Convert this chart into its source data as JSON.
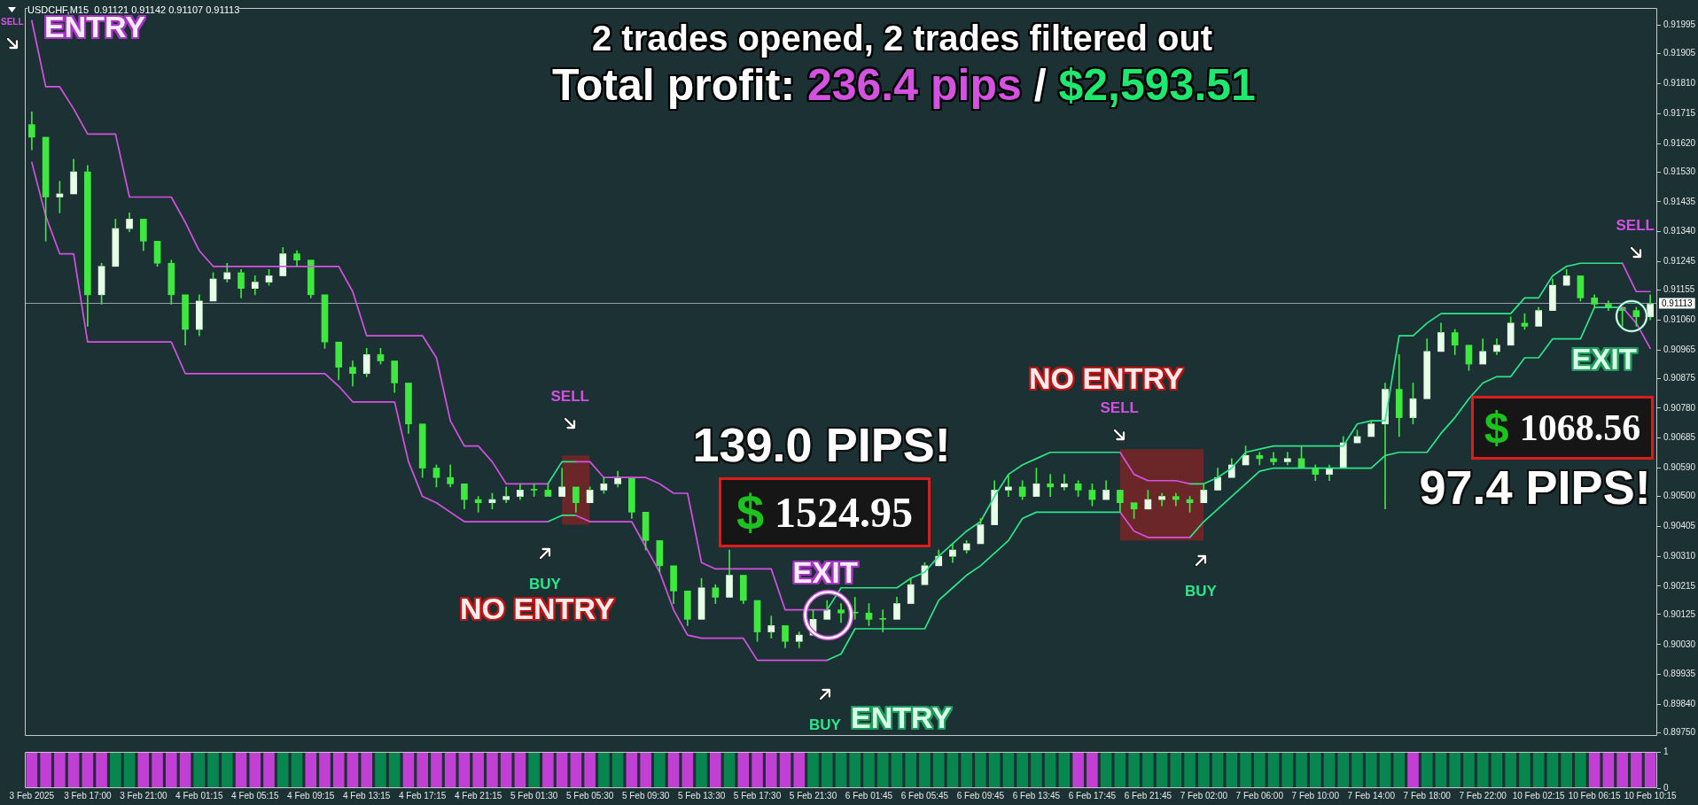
{
  "chart_data": [
    {
      "type": "candlestick",
      "title": "2 trades opened, 2 trades filtered out",
      "subtitle": "Total profit: 236.4 pips / $2,593.51",
      "categories": [
        null,
        null,
        null,
        null,
        null,
        null,
        null,
        null,
        null,
        null,
        null,
        null,
        null,
        null,
        null,
        null,
        null,
        null,
        null,
        null,
        null,
        null,
        null,
        null,
        null,
        null,
        null,
        null,
        null,
        null,
        null,
        null,
        null,
        null,
        null,
        null,
        null,
        null,
        null,
        null,
        null,
        null,
        null,
        null,
        null,
        null,
        null,
        null,
        null,
        null,
        null,
        null,
        null,
        null,
        null,
        null,
        null,
        null,
        null,
        null,
        null,
        null,
        null,
        null,
        null,
        null,
        null,
        null,
        null,
        null,
        null,
        null,
        null,
        null,
        null,
        null,
        null,
        null,
        null,
        null,
        null,
        null,
        null,
        null,
        null,
        null,
        null,
        null,
        null,
        null,
        null,
        null,
        null,
        null,
        null,
        null,
        null,
        null,
        null,
        null,
        null,
        null,
        null,
        null,
        null,
        null,
        null,
        null,
        null,
        null,
        null,
        null,
        null,
        null,
        null,
        null,
        null
      ],
      "color": "#3ee83e",
      "colors": [
        "#3ee83e",
        "#3ee83e",
        "#e6ffe6",
        "#e6ffe6",
        "#3ee83e",
        "#e6ffe6",
        "#e6ffe6",
        "#e6ffe6",
        "#3ee83e",
        "#3ee83e",
        "#3ee83e",
        "#3ee83e",
        "#e6ffe6",
        "#e6ffe6",
        "#e6ffe6",
        "#3ee83e",
        "#e6ffe6",
        "#e6ffe6",
        "#e6ffe6",
        "#3ee83e",
        "#3ee83e",
        "#3ee83e",
        "#3ee83e",
        "#3ee83e",
        "#e6ffe6",
        "#3ee83e",
        "#3ee83e",
        "#3ee83e",
        "#3ee83e",
        "#3ee83e",
        "#3ee83e",
        "#3ee83e",
        "#3ee83e",
        "#e6ffe6",
        "#e6ffe6",
        "#e6ffe6",
        "#3ee83e",
        "#3ee83e",
        "#e6ffe6",
        "#3ee83e",
        "#e6ffe6",
        "#e6ffe6",
        "#e6ffe6",
        "#3ee83e",
        "#3ee83e",
        "#3ee83e",
        "#3ee83e",
        "#3ee83e",
        "#e6ffe6",
        "#3ee83e",
        "#e6ffe6",
        "#3ee83e",
        "#3ee83e",
        "#e6ffe6",
        "#3ee83e",
        "#e6ffe6",
        "#e6ffe6",
        "#e6ffe6",
        "#3ee83e",
        "#3ee83e",
        "#3ee83e",
        "#3ee83e",
        "#e6ffe6",
        "#e6ffe6",
        "#e6ffe6",
        "#e6ffe6",
        "#e6ffe6",
        "#e6ffe6",
        "#e6ffe6",
        "#e6ffe6",
        "#e6ffe6",
        "#3ee83e",
        "#e6ffe6",
        "#3ee83e",
        "#e6ffe6",
        "#3ee83e",
        "#3ee83e",
        "#e6ffe6",
        "#3ee83e",
        "#3ee83e",
        "#e6ffe6",
        "#e6ffe6",
        "#3ee83e",
        "#3ee83e",
        "#e6ffe6",
        "#e6ffe6",
        "#e6ffe6",
        "#e6ffe6",
        "#3ee83e",
        "#3ee83e",
        "#e6ffe6",
        "#3ee83e",
        "#3ee83e",
        "#e6ffe6",
        "#e6ffe6",
        "#e6ffe6",
        "#e6ffe6",
        "#e6ffe6",
        "#3ee83e",
        "#e6ffe6",
        "#e6ffe6",
        "#e6ffe6",
        "#3ee83e",
        "#3ee83e",
        "#e6ffe6",
        "#e6ffe6",
        "#e6ffe6",
        "#3ee83e",
        "#e6ffe6",
        "#e6ffe6",
        "#e6ffe6",
        "#3ee83e",
        "#3ee83e",
        "#3ee83e",
        "#3ee83e",
        "#3ee83e",
        "#e6ffe6"
      ],
      "ohlc": [
        [
          0.9168,
          0.9172,
          0.916,
          0.9164
        ],
        [
          0.9164,
          0.9164,
          0.9131,
          0.9145
        ],
        [
          0.9145,
          0.915,
          0.914,
          0.9146
        ],
        [
          0.9146,
          0.9157,
          0.9146,
          0.9153
        ],
        [
          0.9153,
          0.9155,
          0.9104,
          0.9114
        ],
        [
          0.9114,
          0.9124,
          0.9111,
          0.9123
        ],
        [
          0.9123,
          0.9138,
          0.9123,
          0.9135
        ],
        [
          0.9135,
          0.914,
          0.9134,
          0.9138
        ],
        [
          0.9138,
          0.9138,
          0.9128,
          0.9131
        ],
        [
          0.9131,
          0.9131,
          0.9123,
          0.9124
        ],
        [
          0.9124,
          0.9125,
          0.9111,
          0.9114
        ],
        [
          0.9114,
          0.9114,
          0.9098,
          0.9103
        ],
        [
          0.9103,
          0.9114,
          0.9101,
          0.9112
        ],
        [
          0.9112,
          0.9121,
          0.9112,
          0.9119
        ],
        [
          0.9119,
          0.9124,
          0.9118,
          0.9121
        ],
        [
          0.9121,
          0.9122,
          0.9113,
          0.9116
        ],
        [
          0.9116,
          0.912,
          0.9114,
          0.9118
        ],
        [
          0.9118,
          0.9122,
          0.9117,
          0.912
        ],
        [
          0.912,
          0.9129,
          0.912,
          0.9127
        ],
        [
          0.9127,
          0.9128,
          0.9123,
          0.9125
        ],
        [
          0.9125,
          0.9125,
          0.9113,
          0.9114
        ],
        [
          0.9114,
          0.9114,
          0.9097,
          0.9099
        ],
        [
          0.9099,
          0.9099,
          0.9087,
          0.9091
        ],
        [
          0.9091,
          0.9093,
          0.9085,
          0.9089
        ],
        [
          0.9089,
          0.9097,
          0.9088,
          0.9095
        ],
        [
          0.9095,
          0.9097,
          0.9092,
          0.9093
        ],
        [
          0.9093,
          0.9093,
          0.9083,
          0.9086
        ],
        [
          0.9086,
          0.9086,
          0.907,
          0.9073
        ],
        [
          0.9073,
          0.9073,
          0.9056,
          0.9059
        ],
        [
          0.9059,
          0.906,
          0.9053,
          0.9056
        ],
        [
          0.9056,
          0.906,
          0.9053,
          0.9054
        ],
        [
          0.9054,
          0.9054,
          0.9046,
          0.9049
        ],
        [
          0.9049,
          0.905,
          0.9045,
          0.9048
        ],
        [
          0.9048,
          0.9051,
          0.9046,
          0.9049
        ],
        [
          0.9049,
          0.9053,
          0.9048,
          0.905
        ],
        [
          0.905,
          0.9054,
          0.9049,
          0.9052
        ],
        [
          0.9052,
          0.9054,
          0.905,
          0.9052
        ],
        [
          0.9052,
          0.9054,
          0.905,
          0.905
        ],
        [
          0.905,
          0.9059,
          0.905,
          0.9053
        ],
        [
          0.9053,
          0.9053,
          0.9045,
          0.9048
        ],
        [
          0.9048,
          0.9053,
          0.9048,
          0.9052
        ],
        [
          0.9052,
          0.9056,
          0.9051,
          0.9054
        ],
        [
          0.9054,
          0.9058,
          0.9053,
          0.9056
        ],
        [
          0.9056,
          0.9056,
          0.9043,
          0.9045
        ],
        [
          0.9045,
          0.9045,
          0.9033,
          0.9036
        ],
        [
          0.9036,
          0.9036,
          0.9026,
          0.9028
        ],
        [
          0.9028,
          0.9028,
          0.9016,
          0.902
        ],
        [
          0.902,
          0.902,
          0.9009,
          0.9011
        ],
        [
          0.9011,
          0.9024,
          0.9011,
          0.9021
        ],
        [
          0.9021,
          0.9022,
          0.9016,
          0.9018
        ],
        [
          0.9018,
          0.9033,
          0.9018,
          0.9025
        ],
        [
          0.9025,
          0.9025,
          0.9016,
          0.9017
        ],
        [
          0.9017,
          0.9017,
          0.9004,
          0.9007
        ],
        [
          0.9007,
          0.9012,
          0.9005,
          0.9009
        ],
        [
          0.9009,
          0.9009,
          0.9002,
          0.9004
        ],
        [
          0.9004,
          0.9007,
          0.9002,
          0.9006
        ],
        [
          0.9006,
          0.9014,
          0.9006,
          0.9011
        ],
        [
          0.9011,
          0.9017,
          0.9011,
          0.9014
        ],
        [
          0.9014,
          0.9016,
          0.901,
          0.9013
        ],
        [
          0.9013,
          0.9018,
          0.9011,
          0.9013
        ],
        [
          0.9013,
          0.9016,
          0.9009,
          0.9011
        ],
        [
          0.9011,
          0.9014,
          0.9007,
          0.9011
        ],
        [
          0.9011,
          0.9018,
          0.9011,
          0.9016
        ],
        [
          0.9016,
          0.9024,
          0.9016,
          0.9022
        ],
        [
          0.9022,
          0.9029,
          0.9022,
          0.9028
        ],
        [
          0.9028,
          0.9033,
          0.9028,
          0.9031
        ],
        [
          0.9031,
          0.9035,
          0.9029,
          0.9033
        ],
        [
          0.9033,
          0.9036,
          0.9032,
          0.9035
        ],
        [
          0.9035,
          0.9043,
          0.9035,
          0.9041
        ],
        [
          0.9041,
          0.9055,
          0.9041,
          0.9052
        ],
        [
          0.9052,
          0.9057,
          0.905,
          0.9053
        ],
        [
          0.9053,
          0.9055,
          0.9049,
          0.905
        ],
        [
          0.905,
          0.9059,
          0.905,
          0.9054
        ],
        [
          0.9054,
          0.9057,
          0.905,
          0.9053
        ],
        [
          0.9053,
          0.9057,
          0.9052,
          0.9054
        ],
        [
          0.9054,
          0.9055,
          0.905,
          0.9052
        ],
        [
          0.9052,
          0.9054,
          0.9047,
          0.9049
        ],
        [
          0.9049,
          0.9055,
          0.9049,
          0.9052
        ],
        [
          0.9052,
          0.9052,
          0.9045,
          0.9048
        ],
        [
          0.9048,
          0.9048,
          0.9043,
          0.9046
        ],
        [
          0.9046,
          0.9052,
          0.9046,
          0.9049
        ],
        [
          0.9049,
          0.9051,
          0.9047,
          0.905
        ],
        [
          0.905,
          0.9051,
          0.9047,
          0.9049
        ],
        [
          0.9049,
          0.905,
          0.9045,
          0.9048
        ],
        [
          0.9048,
          0.9054,
          0.9048,
          0.9052
        ],
        [
          0.9052,
          0.9059,
          0.9052,
          0.9056
        ],
        [
          0.9056,
          0.9062,
          0.9056,
          0.906
        ],
        [
          0.906,
          0.9066,
          0.906,
          0.9063
        ],
        [
          0.9063,
          0.9064,
          0.906,
          0.9062
        ],
        [
          0.9062,
          0.9064,
          0.906,
          0.9061
        ],
        [
          0.9061,
          0.9064,
          0.906,
          0.9062
        ],
        [
          0.9062,
          0.9066,
          0.9059,
          0.9059
        ],
        [
          0.9059,
          0.906,
          0.9055,
          0.9057
        ],
        [
          0.9057,
          0.906,
          0.9055,
          0.9059
        ],
        [
          0.9059,
          0.9069,
          0.9059,
          0.9067
        ],
        [
          0.9067,
          0.9071,
          0.9067,
          0.9069
        ],
        [
          0.9069,
          0.9074,
          0.9069,
          0.9073
        ],
        [
          0.9073,
          0.9086,
          0.9046,
          0.9084
        ],
        [
          0.9084,
          0.9095,
          0.9069,
          0.9075
        ],
        [
          0.9075,
          0.9086,
          0.9073,
          0.9081
        ],
        [
          0.9081,
          0.91,
          0.9081,
          0.9096
        ],
        [
          0.9096,
          0.9105,
          0.9096,
          0.9102
        ],
        [
          0.9102,
          0.9103,
          0.9095,
          0.9098
        ],
        [
          0.9098,
          0.9098,
          0.909,
          0.9092
        ],
        [
          0.9092,
          0.91,
          0.9092,
          0.9096
        ],
        [
          0.9096,
          0.91,
          0.9095,
          0.9098
        ],
        [
          0.9098,
          0.9107,
          0.9098,
          0.9105
        ],
        [
          0.9105,
          0.9108,
          0.9103,
          0.9104
        ],
        [
          0.9104,
          0.911,
          0.9104,
          0.9109
        ],
        [
          0.9109,
          0.9119,
          0.9109,
          0.9117
        ],
        [
          0.9117,
          0.9122,
          0.9117,
          0.912
        ],
        [
          0.912,
          0.912,
          0.9112,
          0.9113
        ],
        [
          0.9113,
          0.9114,
          0.911,
          0.9111
        ],
        [
          0.9111,
          0.9112,
          0.9109,
          0.911
        ],
        [
          0.911,
          0.911,
          0.9104,
          0.9109
        ],
        [
          0.9109,
          0.911,
          0.9104,
          0.9107
        ],
        [
          0.9107,
          0.9114,
          0.9106,
          0.9111
        ]
      ],
      "series": [
        {
          "type": "line",
          "color": "#6b2727",
          "values": [
            null,
            null,
            null,
            null,
            null,
            null,
            null,
            null,
            null,
            null,
            null,
            null,
            null,
            null,
            null,
            null,
            null,
            null,
            null,
            null,
            null,
            null,
            null,
            null,
            null,
            null,
            null,
            null,
            null,
            null,
            null,
            null,
            null,
            null,
            null,
            null,
            null,
            null,
            null,
            null,
            null,
            null,
            null,
            null,
            null,
            null,
            null,
            null,
            null,
            null,
            null,
            null,
            null,
            null,
            null,
            null,
            null,
            null,
            null,
            null,
            null,
            null,
            null,
            null,
            null,
            null,
            null,
            null,
            null,
            null,
            null,
            null,
            null,
            null,
            null,
            null,
            null,
            null,
            null,
            null,
            null,
            null,
            null,
            null,
            null,
            null,
            null,
            null,
            null,
            null,
            null,
            null,
            null,
            null,
            null,
            null,
            null,
            null,
            null,
            null,
            null,
            null,
            null,
            null,
            null,
            null,
            null,
            null,
            null,
            null,
            null,
            null,
            null,
            null,
            null,
            null,
            null
          ],
          "lower": [
            null,
            null,
            null,
            null,
            null,
            null,
            null,
            null,
            null,
            null,
            null,
            null,
            null,
            null,
            null,
            null,
            null,
            null,
            null,
            null,
            null,
            null,
            null,
            null,
            null,
            null,
            null,
            null,
            null,
            null,
            null,
            null,
            null,
            null,
            null,
            null,
            null,
            null,
            0.9041,
            0.9041,
            0.9041,
            null,
            null,
            null,
            null,
            null,
            null,
            null,
            null,
            null,
            null,
            null,
            null,
            null,
            null,
            null,
            null,
            null,
            null,
            null,
            null,
            null,
            null,
            null,
            null,
            null,
            null,
            null,
            null,
            null,
            null,
            null,
            null,
            null,
            null,
            null,
            null,
            null,
            0.9036,
            0.9036,
            0.9036,
            0.9036,
            0.9036,
            0.9036,
            0.9036,
            null,
            null,
            null,
            null,
            null,
            null,
            null,
            null,
            null,
            null,
            null,
            null,
            null,
            null,
            null,
            null,
            null,
            null,
            null,
            null,
            null,
            null,
            null,
            null,
            null,
            null,
            null,
            null,
            null,
            null,
            null,
            null
          ],
          "upper": [
            null,
            null,
            null,
            null,
            null,
            null,
            null,
            null,
            null,
            null,
            null,
            null,
            null,
            null,
            null,
            null,
            null,
            null,
            null,
            null,
            null,
            null,
            null,
            null,
            null,
            null,
            null,
            null,
            null,
            null,
            null,
            null,
            null,
            null,
            null,
            null,
            null,
            null,
            0.9063,
            0.9063,
            0.9063,
            null,
            null,
            null,
            null,
            null,
            null,
            null,
            null,
            null,
            null,
            null,
            null,
            null,
            null,
            null,
            null,
            null,
            null,
            null,
            null,
            null,
            null,
            null,
            null,
            null,
            null,
            null,
            null,
            null,
            null,
            null,
            null,
            null,
            null,
            null,
            null,
            null,
            0.9065,
            0.9065,
            0.9065,
            0.9065,
            0.9065,
            0.9065,
            0.9065,
            null,
            null,
            null,
            null,
            null,
            null,
            null,
            null,
            null,
            null,
            null,
            null,
            null,
            null,
            null,
            null,
            null,
            null,
            null,
            null,
            null,
            null,
            null,
            null,
            null,
            null,
            null,
            null,
            null,
            null,
            null,
            null
          ]
        },
        {
          "type": "line",
          "color": "#d651e3",
          "values": [
            0.9201,
            0.918,
            0.918,
            0.9173,
            0.9165,
            0.9165,
            0.9165,
            0.9145,
            0.9145,
            0.9145,
            0.9145,
            0.9137,
            0.9128,
            0.9123,
            0.9123,
            0.9123,
            0.9123,
            0.9123,
            0.9123,
            0.9123,
            0.9123,
            0.9123,
            0.9123,
            0.9115,
            0.9101,
            0.9101,
            0.9101,
            0.9101,
            0.9101,
            0.9094,
            0.9074,
            0.9066,
            0.9066,
            0.9061,
            0.9054,
            0.9054,
            0.9054,
            0.9054,
            null,
            0.9061,
            0.9061,
            0.9056,
            0.9056,
            0.9056,
            0.9056,
            0.9054,
            0.9051,
            0.9051,
            0.9029,
            0.9027,
            0.9027,
            0.9027,
            0.9027,
            0.9027,
            0.9014,
            0.9014,
            0.9014,
            0.9014,
            null,
            null,
            null,
            null,
            null,
            null,
            null,
            null,
            null,
            null,
            null,
            null,
            null,
            null,
            null,
            null,
            null,
            null,
            null,
            null,
            0.9064,
            0.9057,
            0.9055,
            0.9055,
            0.9055,
            0.9054,
            null,
            null,
            null,
            null,
            null,
            null,
            null,
            null,
            null,
            null,
            null,
            null,
            null,
            null,
            null,
            null,
            null,
            null,
            null,
            null,
            null,
            null,
            null,
            null,
            null,
            null,
            null,
            null,
            null,
            null,
            0.9124,
            0.9115,
            0.9115
          ]
        },
        {
          "type": "line",
          "color": "#2ee68a",
          "values": [
            null,
            null,
            null,
            null,
            null,
            null,
            null,
            null,
            null,
            null,
            null,
            null,
            null,
            null,
            null,
            null,
            null,
            null,
            null,
            null,
            null,
            null,
            null,
            null,
            null,
            null,
            null,
            null,
            null,
            null,
            null,
            null,
            null,
            null,
            null,
            null,
            null,
            0.9054,
            0.9061,
            0.9061,
            null,
            null,
            null,
            null,
            null,
            null,
            null,
            null,
            null,
            null,
            null,
            null,
            null,
            null,
            null,
            null,
            null,
            0.9014,
            0.9021,
            0.9021,
            0.9021,
            0.9021,
            0.9021,
            0.9024,
            0.9026,
            0.9031,
            0.9035,
            0.9039,
            0.9042,
            0.905,
            0.9057,
            0.906,
            0.9062,
            0.9064,
            0.9064,
            0.9064,
            0.9064,
            0.9064,
            0.9064,
            null,
            null,
            null,
            null,
            0.9054,
            0.9054,
            0.9056,
            0.9059,
            0.9064,
            0.9065,
            0.9066,
            0.9066,
            0.9066,
            0.9066,
            0.9066,
            0.9066,
            0.9073,
            0.9074,
            0.9074,
            0.9101,
            0.9101,
            0.9105,
            0.9108,
            0.9108,
            0.9108,
            0.9108,
            0.9108,
            0.9108,
            0.9113,
            0.9113,
            0.912,
            0.9123,
            0.9124,
            0.9124,
            0.9124,
            0.9124,
            null,
            null
          ]
        },
        {
          "type": "line",
          "color": "#d651e3",
          "values": [
            0.9156,
            0.9139,
            0.9127,
            0.9127,
            0.9099,
            0.9099,
            0.9099,
            0.9099,
            0.9099,
            0.9099,
            0.9099,
            0.9089,
            0.9089,
            0.9089,
            0.9089,
            0.9089,
            0.9089,
            0.9089,
            0.9089,
            0.9089,
            0.9089,
            0.9089,
            0.9085,
            0.908,
            0.908,
            0.908,
            0.908,
            0.9061,
            0.905,
            0.9048,
            0.9045,
            0.9042,
            0.9042,
            0.9042,
            0.9042,
            0.9042,
            0.9042,
            0.9042,
            null,
            0.9044,
            0.9042,
            0.9042,
            0.9042,
            0.9042,
            0.9034,
            0.9026,
            0.9014,
            0.9006,
            0.9005,
            0.9005,
            0.9005,
            0.9005,
            0.8998,
            0.8998,
            0.8998,
            0.8998,
            0.8998,
            0.8998,
            null,
            null,
            null,
            null,
            null,
            null,
            null,
            null,
            null,
            null,
            null,
            null,
            null,
            null,
            null,
            null,
            null,
            null,
            null,
            null,
            0.9045,
            0.9039,
            0.9037,
            0.9037,
            0.9037,
            0.9037,
            null,
            null,
            null,
            null,
            null,
            null,
            null,
            null,
            null,
            null,
            null,
            null,
            null,
            null,
            null,
            null,
            null,
            null,
            null,
            null,
            null,
            null,
            null,
            null,
            null,
            null,
            null,
            null,
            null,
            null,
            0.911,
            0.9105,
            0.9097
          ]
        },
        {
          "type": "line",
          "color": "#2ee68a",
          "values": [
            null,
            null,
            null,
            null,
            null,
            null,
            null,
            null,
            null,
            null,
            null,
            null,
            null,
            null,
            null,
            null,
            null,
            null,
            null,
            null,
            null,
            null,
            null,
            null,
            null,
            null,
            null,
            null,
            null,
            null,
            null,
            null,
            null,
            null,
            null,
            null,
            null,
            0.9042,
            0.9044,
            0.9044,
            null,
            null,
            null,
            null,
            null,
            null,
            null,
            null,
            null,
            null,
            null,
            null,
            null,
            null,
            null,
            null,
            null,
            0.8998,
            0.9,
            0.9008,
            0.9008,
            0.9008,
            0.9008,
            0.9008,
            0.9008,
            0.9017,
            0.9021,
            0.9025,
            0.9028,
            0.9032,
            0.9036,
            0.9043,
            0.9045,
            0.9045,
            0.9045,
            0.9045,
            0.9045,
            0.9045,
            0.9045,
            null,
            null,
            null,
            null,
            0.9037,
            0.9042,
            0.9046,
            0.905,
            0.9054,
            0.9058,
            0.9059,
            0.9059,
            0.9059,
            0.9059,
            0.9059,
            0.9059,
            0.9059,
            0.9059,
            0.9063,
            0.9064,
            0.9064,
            0.9064,
            0.907,
            0.9075,
            0.9081,
            0.9086,
            0.9088,
            0.9088,
            0.9094,
            0.9094,
            0.91,
            0.91,
            0.91,
            0.911,
            0.911,
            0.911,
            null,
            null
          ]
        }
      ],
      "ylim": [
        0.8974,
        0.9205
      ],
      "yticks": [
        0.91995,
        0.91905,
        {
          "value": 0.9181,
          "label": "0.91810"
        },
        0.91715,
        {
          "value": 0.9162,
          "label": "0.91620"
        },
        {
          "value": 0.9153,
          "label": "0.91530"
        },
        0.91435,
        {
          "value": 0.9134,
          "label": "0.91340"
        },
        0.91245,
        0.91155,
        {
          "value": 0.9106,
          "label": "0.91060"
        },
        0.90965,
        0.90875,
        {
          "value": 0.9078,
          "label": "0.90780"
        },
        0.90685,
        {
          "value": 0.9059,
          "label": "0.90590"
        },
        {
          "value": 0.905,
          "label": "0.90500"
        },
        0.90405,
        {
          "value": 0.9031,
          "label": "0.90310"
        },
        0.90215,
        0.90125,
        {
          "value": 0.9003,
          "label": "0.90030"
        },
        0.89935,
        {
          "value": 0.8984,
          "label": "0.89840"
        },
        {
          "value": 0.8975,
          "label": "0.89750"
        }
      ],
      "ref_lines": [
        {
          "axis": "y",
          "value": 0.91113,
          "label": "0.91113",
          "color": "#8fa3a8"
        }
      ],
      "annotations": [
        "USDCHF,M15  0.91121 0.91142 0.91107 0.91113",
        "SELL",
        "ENTRY",
        "SELL",
        "BUY",
        "NO ENTRY",
        "139.0 PIPS!",
        "$",
        "1524.95",
        "EXIT",
        "BUY",
        "ENTRY",
        "NO ENTRY",
        "SELL",
        "BUY",
        "SELL",
        "EXIT",
        "$",
        "1068.56",
        "97.4 PIPS!"
      ],
      "tick_labels": "y",
      "marker": "none"
    },
    {
      "type": "bar",
      "categories": [
        "3 Feb 2025",
        null,
        null,
        null,
        "3 Feb 17:00",
        null,
        null,
        null,
        "3 Feb 21:00",
        null,
        null,
        null,
        "4 Feb 01:15",
        null,
        null,
        null,
        "4 Feb 05:15",
        null,
        null,
        null,
        "4 Feb 09:15",
        null,
        null,
        null,
        "4 Feb 13:15",
        null,
        null,
        null,
        "4 Feb 17:15",
        null,
        null,
        null,
        "4 Feb 21:15",
        null,
        null,
        null,
        "5 Feb 01:30",
        null,
        null,
        null,
        "5 Feb 05:30",
        null,
        null,
        null,
        "5 Feb 09:30",
        null,
        null,
        null,
        "5 Feb 13:30",
        null,
        null,
        null,
        "5 Feb 17:30",
        null,
        null,
        null,
        "5 Feb 21:30",
        null,
        null,
        null,
        "6 Feb 01:45",
        null,
        null,
        null,
        "6 Feb 05:45",
        null,
        null,
        null,
        "6 Feb 09:45",
        null,
        null,
        null,
        "6 Feb 13:45",
        null,
        null,
        null,
        "6 Feb 17:45",
        null,
        null,
        null,
        "6 Feb 21:45",
        null,
        null,
        null,
        "7 Feb 02:00",
        null,
        null,
        null,
        "7 Feb 06:00",
        null,
        null,
        null,
        "7 Feb 10:00",
        null,
        null,
        null,
        "7 Feb 14:00",
        null,
        null,
        null,
        "7 Feb 18:00",
        null,
        null,
        null,
        "7 Feb 22:00",
        null,
        null,
        null,
        "10 Feb 02:15",
        null,
        null,
        null,
        "10 Feb 06:15",
        null,
        null,
        null,
        "10 Feb 10:15"
      ],
      "values": [
        1,
        1,
        1,
        1,
        1,
        1,
        1,
        1,
        1,
        1,
        1,
        1,
        1,
        1,
        1,
        1,
        1,
        1,
        1,
        1,
        1,
        1,
        1,
        1,
        1,
        1,
        1,
        1,
        1,
        1,
        1,
        1,
        1,
        1,
        1,
        1,
        1,
        1,
        1,
        1,
        1,
        1,
        1,
        1,
        1,
        1,
        1,
        1,
        1,
        1,
        1,
        1,
        1,
        1,
        1,
        1,
        1,
        1,
        1,
        1,
        1,
        1,
        1,
        1,
        1,
        1,
        1,
        1,
        1,
        1,
        1,
        1,
        1,
        1,
        1,
        1,
        1,
        1,
        1,
        1,
        1,
        1,
        1,
        1,
        1,
        1,
        1,
        1,
        1,
        1,
        1,
        1,
        1,
        1,
        1,
        1,
        1,
        1,
        1,
        1,
        1,
        1,
        1,
        1,
        1,
        1,
        1,
        1,
        1,
        1,
        1,
        1,
        1,
        1,
        1,
        1,
        1
      ],
      "colors": [
        "#c23fd6",
        "#c23fd6",
        "#c23fd6",
        "#c23fd6",
        "#c23fd6",
        "#c23fd6",
        "#078650",
        "#078650",
        "#c23fd6",
        "#c23fd6",
        "#c23fd6",
        "#c23fd6",
        "#078650",
        "#078650",
        "#078650",
        "#c23fd6",
        "#c23fd6",
        "#c23fd6",
        "#078650",
        "#078650",
        "#c23fd6",
        "#c23fd6",
        "#c23fd6",
        "#c23fd6",
        "#c23fd6",
        "#078650",
        "#078650",
        "#c23fd6",
        "#c23fd6",
        "#c23fd6",
        "#c23fd6",
        "#c23fd6",
        "#c23fd6",
        "#c23fd6",
        "#c23fd6",
        "#c23fd6",
        "#078650",
        "#c23fd6",
        "#c23fd6",
        "#c23fd6",
        "#c23fd6",
        "#078650",
        "#078650",
        "#c23fd6",
        "#c23fd6",
        "#078650",
        "#c23fd6",
        "#c23fd6",
        "#078650",
        "#c23fd6",
        "#078650",
        "#c23fd6",
        "#c23fd6",
        "#c23fd6",
        "#c23fd6",
        "#c23fd6",
        "#078650",
        "#078650",
        "#078650",
        "#078650",
        "#078650",
        "#078650",
        "#078650",
        "#078650",
        "#078650",
        "#078650",
        "#078650",
        "#078650",
        "#078650",
        "#078650",
        "#078650",
        "#078650",
        "#078650",
        "#078650",
        "#078650",
        "#c23fd6",
        "#c23fd6",
        "#078650",
        "#078650",
        "#078650",
        "#078650",
        "#078650",
        "#078650",
        "#078650",
        "#078650",
        "#078650",
        "#078650",
        "#078650",
        "#078650",
        "#078650",
        "#078650",
        "#078650",
        "#078650",
        "#078650",
        "#078650",
        "#078650",
        "#078650",
        "#078650",
        "#078650",
        "#c23fd6",
        "#078650",
        "#078650",
        "#078650",
        "#078650",
        "#078650",
        "#078650",
        "#078650",
        "#078650",
        "#078650",
        "#078650",
        "#078650",
        "#078650",
        "#c23fd6",
        "#c23fd6",
        "#c23fd6",
        "#c23fd6",
        "#c23fd6"
      ],
      "ylim": [
        0,
        1
      ],
      "yticks": [
        0,
        1
      ]
    }
  ]
}
